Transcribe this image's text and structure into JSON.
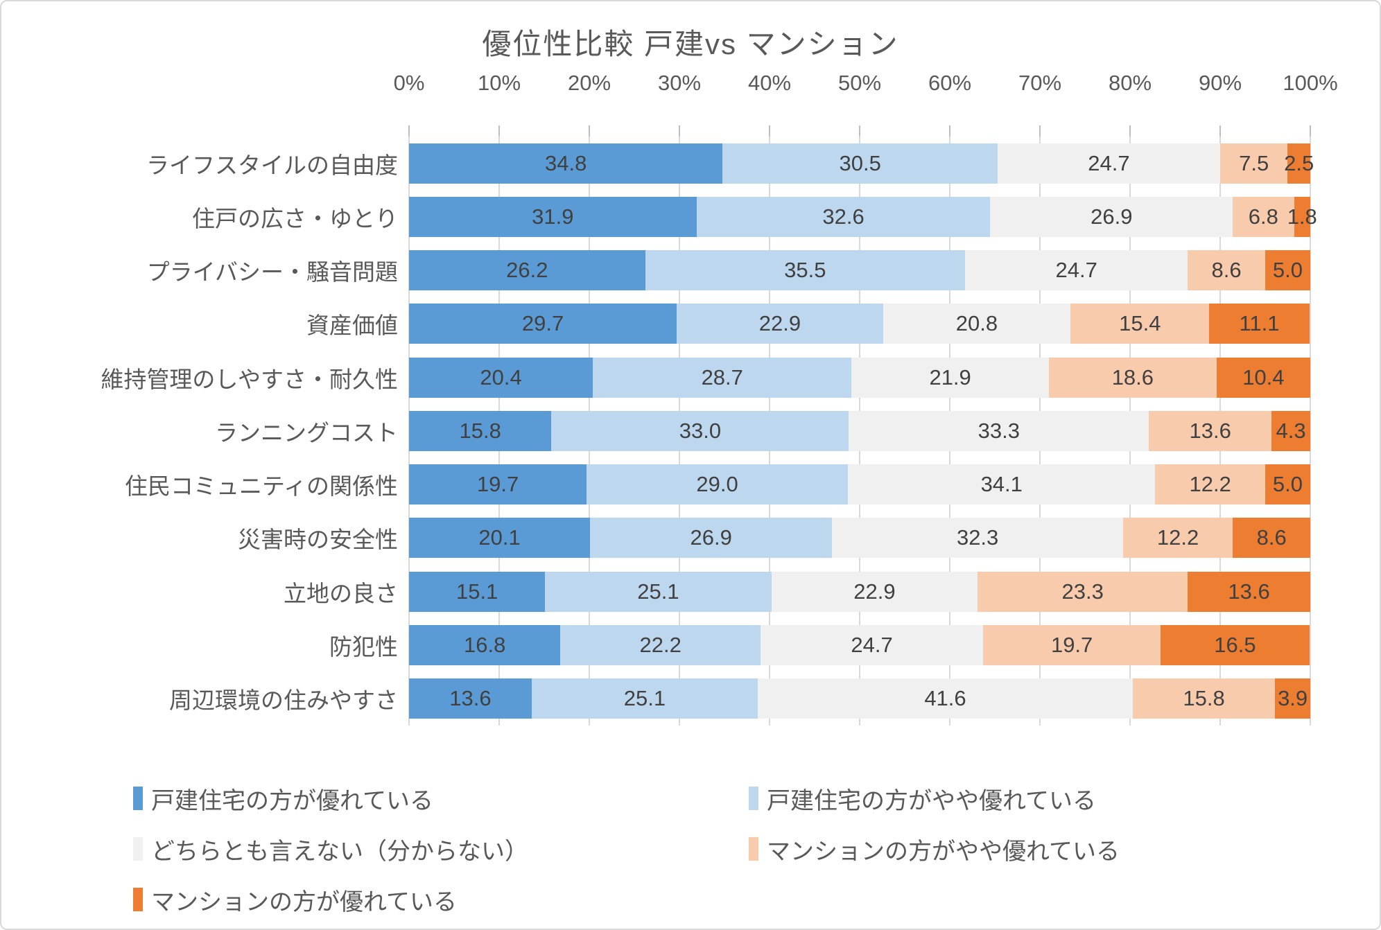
{
  "chart_data": {
    "type": "bar",
    "stacked": true,
    "orientation": "horizontal",
    "title": "優位性比較 戸建vs マンション",
    "categories": [
      "ライフスタイルの自由度",
      "住戸の広さ・ゆとり",
      "プライバシー・騒音問題",
      "資産価値",
      "維持管理のしやすさ・耐久性",
      "ランニングコスト",
      "住民コミュニティの関係性",
      "災害時の安全性",
      "立地の良さ",
      "防犯性",
      "周辺環境の住みやすさ"
    ],
    "series": [
      {
        "name": "戸建住宅の方が優れている",
        "color": "#5B9BD5",
        "values": [
          34.8,
          31.9,
          26.2,
          29.7,
          20.4,
          15.8,
          19.7,
          20.1,
          15.1,
          16.8,
          13.6
        ]
      },
      {
        "name": "戸建住宅の方がやや優れている",
        "color": "#BDD7EE",
        "values": [
          30.5,
          32.6,
          35.5,
          22.9,
          28.7,
          33.0,
          29.0,
          26.9,
          25.1,
          22.2,
          25.1
        ]
      },
      {
        "name": "どちらとも言えない（分からない）",
        "color": "#F0F0F0",
        "values": [
          24.7,
          26.9,
          24.7,
          20.8,
          21.9,
          33.3,
          34.1,
          32.3,
          22.9,
          24.7,
          41.6
        ]
      },
      {
        "name": "マンションの方がやや優れている",
        "color": "#F8CBAD",
        "values": [
          7.5,
          6.8,
          8.6,
          15.4,
          18.6,
          13.6,
          12.2,
          12.2,
          23.3,
          19.7,
          15.8
        ]
      },
      {
        "name": "マンションの方が優れている",
        "color": "#ED7D31",
        "values": [
          2.5,
          1.8,
          5.0,
          11.1,
          10.4,
          4.3,
          5.0,
          8.6,
          13.6,
          16.5,
          3.9
        ]
      }
    ],
    "x_axis": {
      "min": 0,
      "max": 100,
      "ticks": [
        "0%",
        "10%",
        "20%",
        "30%",
        "40%",
        "50%",
        "60%",
        "70%",
        "80%",
        "90%",
        "100%"
      ]
    },
    "value_labels": "one_decimal_inside_segments",
    "grid": true,
    "legend_position": "bottom",
    "style": {
      "gridline_color": "#D9D9D9",
      "text_color": "#595959",
      "value_label_color": "#404040",
      "background": "#FFFFFF"
    }
  }
}
